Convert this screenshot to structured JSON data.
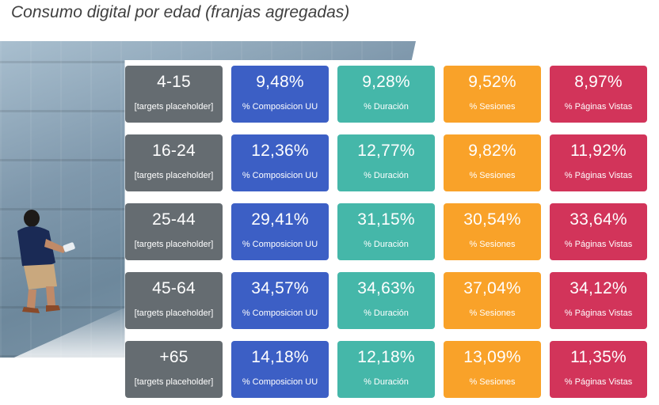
{
  "header": {
    "title": "Consumo digital por edad (franjas agregadas)"
  },
  "colors": {
    "age": "#656c71",
    "composicion": "#3c5fc5",
    "duracion": "#45b7a9",
    "sesiones": "#f9a229",
    "paginas": "#d2345a"
  },
  "labels": {
    "target": "[targets placeholder]",
    "composicion": "% Composicion UU",
    "duracion": "% Duración",
    "sesiones": "% Sesiones",
    "paginas": "% Páginas Vistas"
  },
  "rows": [
    {
      "age": "4-15",
      "composicion": "9,48%",
      "duracion": "9,28%",
      "sesiones": "9,52%",
      "paginas": "8,97%"
    },
    {
      "age": "16-24",
      "composicion": "12,36%",
      "duracion": "12,77%",
      "sesiones": "9,82%",
      "paginas": "11,92%"
    },
    {
      "age": "25-44",
      "composicion": "29,41%",
      "duracion": "31,15%",
      "sesiones": "30,54%",
      "paginas": "33,64%"
    },
    {
      "age": "45-64",
      "composicion": "34,57%",
      "duracion": "34,63%",
      "sesiones": "37,04%",
      "paginas": "34,12%"
    },
    {
      "age": "+65",
      "composicion": "14,18%",
      "duracion": "12,18%",
      "sesiones": "13,09%",
      "paginas": "11,35%"
    }
  ]
}
